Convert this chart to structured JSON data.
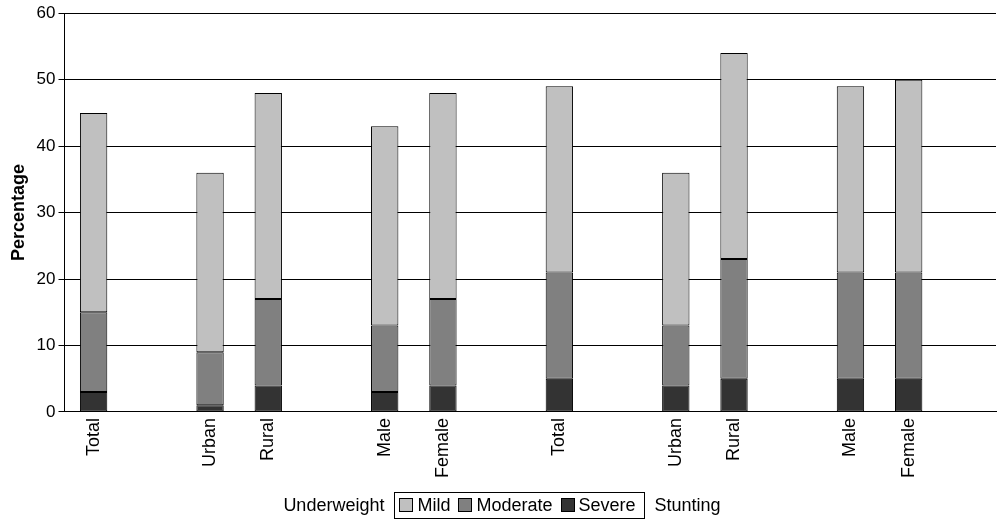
{
  "chart_data": {
    "type": "bar",
    "stacked": true,
    "ylabel": "Percentage",
    "categories": [
      "Total",
      null,
      "Urban",
      "Rural",
      null,
      "Male",
      "Female",
      null,
      "Total",
      null,
      "Urban",
      "Rural",
      null,
      "Male",
      "Female",
      null
    ],
    "series": [
      {
        "name": "Severe",
        "color": "#333333",
        "values": [
          3,
          null,
          1,
          4,
          null,
          3,
          4,
          null,
          5,
          null,
          4,
          5,
          null,
          5,
          5,
          null
        ]
      },
      {
        "name": "Moderate",
        "color": "#808080",
        "values": [
          12,
          null,
          8,
          13,
          null,
          10,
          13,
          null,
          16,
          null,
          9,
          18,
          null,
          16,
          16,
          null
        ]
      },
      {
        "name": "Mild",
        "color": "#c0c0c0",
        "values": [
          30,
          null,
          27,
          31,
          null,
          30,
          31,
          null,
          28,
          null,
          23,
          31,
          null,
          28,
          29,
          null
        ]
      }
    ],
    "ylim": [
      0,
      60
    ],
    "yticks": [
      0,
      10,
      20,
      30,
      40,
      50,
      60
    ],
    "grid": "y",
    "legend": "bottom",
    "annotations": [
      "Underweight",
      "Stunting"
    ]
  }
}
